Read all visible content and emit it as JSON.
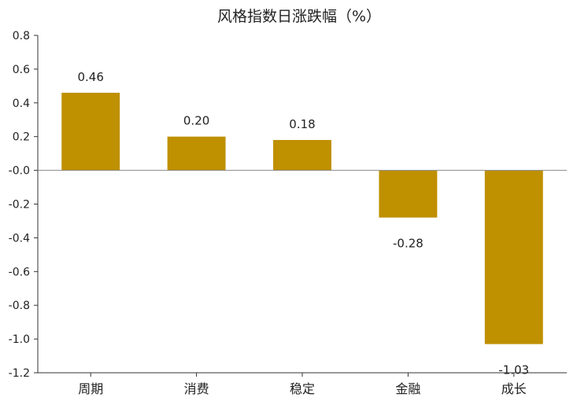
{
  "chart_data": {
    "type": "bar",
    "title": "风格指数日涨跌幅（%）",
    "categories": [
      "周期",
      "消费",
      "稳定",
      "金融",
      "成长"
    ],
    "values": [
      0.46,
      0.2,
      0.18,
      -0.28,
      -1.03
    ],
    "data_labels": [
      "0.46",
      "0.20",
      "0.18",
      "-0.28",
      "-1.03"
    ],
    "ylim": [
      -1.2,
      0.8
    ],
    "yticks": [
      0.8,
      0.6,
      0.4,
      0.2,
      0.0,
      -0.2,
      -0.4,
      -0.6,
      -0.8,
      -1.0,
      -1.2
    ],
    "ytick_labels": [
      "0.8",
      "0.6",
      "0.4",
      "0.2",
      "-0.0",
      "-0.2",
      "-0.4",
      "-0.6",
      "-0.8",
      "-1.0",
      "-1.2"
    ],
    "bar_color": "#BF9000",
    "grid": false,
    "legend": "none"
  }
}
